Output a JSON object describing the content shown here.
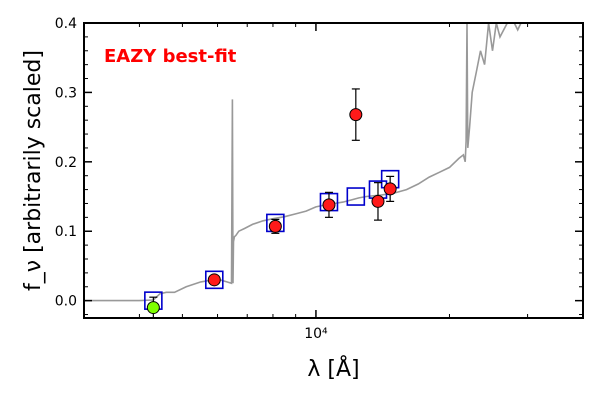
{
  "chart_data": {
    "type": "scatter",
    "title": "",
    "annotation": "EAZY best-fit",
    "annotation_color": "#ff0000",
    "xlabel": "λ [Å]",
    "ylabel": "f_ν [arbitrarily scaled]",
    "xscale": "log",
    "xlim": [
      3000,
      40000
    ],
    "ylim": [
      -0.025,
      0.4
    ],
    "y_ticks": [
      0.0,
      0.1,
      0.2,
      0.3,
      0.4
    ],
    "y_tick_labels": [
      "0.0",
      "0.1",
      "0.2",
      "0.3",
      "0.4"
    ],
    "x_ticks": [
      10000
    ],
    "x_tick_labels": [
      "10⁴"
    ],
    "grid": false,
    "series": [
      {
        "kind": "model_spectrum",
        "color": "#999999",
        "x": [
          3000,
          4000,
          4300,
          4450,
          4600,
          4800,
          5100,
          5500,
          6000,
          6300,
          6450,
          6480,
          6500,
          6520,
          6550,
          6600,
          6700,
          6900,
          7200,
          7600,
          8000,
          8500,
          9000,
          9500,
          10000,
          10500,
          11000,
          11500,
          12000,
          12500,
          13000,
          14000,
          15000,
          16000,
          17000,
          18000,
          19000,
          20000,
          21000,
          21500,
          21700,
          21800,
          21900,
          22000,
          22200,
          22500,
          23000,
          23500,
          24000,
          24500,
          25000,
          25500,
          26000,
          27000,
          28000,
          28500,
          29000,
          30000,
          31000,
          32000
        ],
        "y": [
          0.0,
          0.0,
          0.001,
          0.01,
          0.012,
          0.012,
          0.02,
          0.027,
          0.031,
          0.027,
          0.025,
          0.29,
          0.025,
          0.085,
          0.092,
          0.094,
          0.1,
          0.104,
          0.11,
          0.115,
          0.118,
          0.121,
          0.125,
          0.129,
          0.135,
          0.138,
          0.14,
          0.142,
          0.145,
          0.148,
          0.15,
          0.152,
          0.155,
          0.16,
          0.168,
          0.178,
          0.185,
          0.192,
          0.205,
          0.21,
          0.2,
          0.23,
          0.4,
          0.22,
          0.25,
          0.3,
          0.33,
          0.36,
          0.34,
          0.4,
          0.36,
          0.4,
          0.38,
          0.4,
          0.4,
          0.39,
          0.4,
          0.4,
          0.4,
          0.4
        ]
      },
      {
        "kind": "model_photometry",
        "name": "",
        "marker": "open-square",
        "color": "#0000cc",
        "x": [
          4300,
          5900,
          8100,
          10700,
          12300,
          13800,
          14700
        ],
        "y": [
          0.0,
          0.03,
          0.112,
          0.142,
          0.15,
          0.16,
          0.175
        ]
      },
      {
        "kind": "observed_photometry",
        "name": "",
        "marker": "circle",
        "fill": "#ff1a1a",
        "x": [
          5900,
          8100,
          10700,
          12300,
          13800,
          14700
        ],
        "y": [
          0.03,
          0.107,
          0.138,
          0.268,
          0.143,
          0.161
        ],
        "yerr": [
          0.005,
          0.01,
          0.018,
          0.037,
          0.027,
          0.018
        ]
      },
      {
        "kind": "observed_photometry_nondetection",
        "name": "",
        "marker": "circle",
        "fill": "#7fff00",
        "x": [
          4300
        ],
        "y": [
          -0.01
        ],
        "yerr": [
          0.015
        ]
      }
    ]
  }
}
